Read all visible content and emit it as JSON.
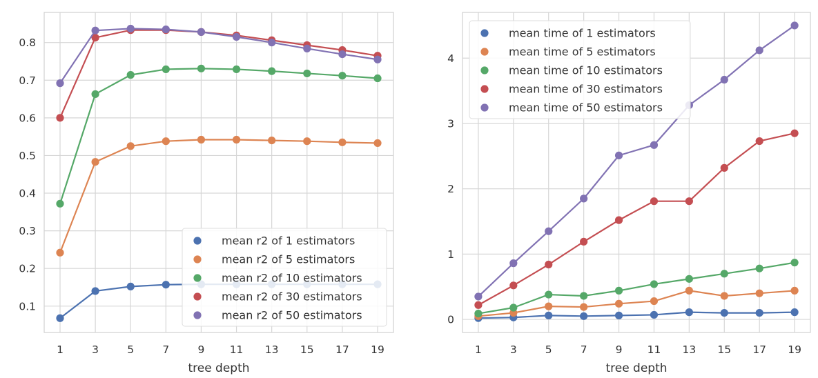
{
  "chart_data": [
    {
      "type": "line",
      "xlabel": "tree depth",
      "ylabel": "",
      "xticks": [
        1,
        3,
        5,
        7,
        9,
        11,
        13,
        15,
        17,
        19
      ],
      "xlim": [
        0.1,
        19.9
      ],
      "ylim": [
        0.03,
        0.88
      ],
      "yticks": [
        0.1,
        0.2,
        0.3,
        0.4,
        0.5,
        0.6,
        0.7,
        0.8
      ],
      "grid": true,
      "legend_position": "lower-right",
      "x": [
        1,
        3,
        5,
        7,
        9,
        11,
        13,
        15,
        17,
        19
      ],
      "series": [
        {
          "name": "mean r2 of 1 estimators",
          "color": "#4c72b0",
          "values": [
            0.068,
            0.14,
            0.152,
            0.157,
            0.158,
            0.158,
            0.158,
            0.158,
            0.158,
            0.158
          ]
        },
        {
          "name": "mean r2 of 5 estimators",
          "color": "#dd8452",
          "values": [
            0.242,
            0.483,
            0.525,
            0.538,
            0.542,
            0.542,
            0.54,
            0.538,
            0.535,
            0.533
          ]
        },
        {
          "name": "mean r2 of 10 estimators",
          "color": "#55a868",
          "values": [
            0.372,
            0.663,
            0.714,
            0.729,
            0.731,
            0.729,
            0.724,
            0.718,
            0.712,
            0.705
          ]
        },
        {
          "name": "mean r2 of 30 estimators",
          "color": "#c44e52",
          "values": [
            0.6,
            0.813,
            0.833,
            0.833,
            0.828,
            0.819,
            0.806,
            0.793,
            0.78,
            0.765
          ]
        },
        {
          "name": "mean r2 of 50 estimators",
          "color": "#8172b3",
          "values": [
            0.692,
            0.832,
            0.837,
            0.835,
            0.828,
            0.815,
            0.8,
            0.784,
            0.769,
            0.755
          ]
        }
      ]
    },
    {
      "type": "line",
      "xlabel": "tree depth",
      "ylabel": "",
      "xticks": [
        1,
        3,
        5,
        7,
        9,
        11,
        13,
        15,
        17,
        19
      ],
      "xlim": [
        0.1,
        19.9
      ],
      "ylim": [
        -0.2,
        4.7
      ],
      "yticks": [
        0,
        1,
        2,
        3,
        4
      ],
      "grid": true,
      "legend_position": "upper-left",
      "x": [
        1,
        3,
        5,
        7,
        9,
        11,
        13,
        15,
        17,
        19
      ],
      "series": [
        {
          "name": "mean time of 1 estimators",
          "color": "#4c72b0",
          "values": [
            0.02,
            0.03,
            0.06,
            0.05,
            0.06,
            0.07,
            0.11,
            0.1,
            0.1,
            0.11
          ]
        },
        {
          "name": "mean time of 5 estimators",
          "color": "#dd8452",
          "values": [
            0.05,
            0.1,
            0.2,
            0.19,
            0.24,
            0.28,
            0.44,
            0.36,
            0.4,
            0.44
          ]
        },
        {
          "name": "mean time of 10 estimators",
          "color": "#55a868",
          "values": [
            0.09,
            0.18,
            0.38,
            0.36,
            0.44,
            0.54,
            0.62,
            0.7,
            0.78,
            0.87
          ]
        },
        {
          "name": "mean time of 30 estimators",
          "color": "#c44e52",
          "values": [
            0.22,
            0.52,
            0.84,
            1.19,
            1.52,
            1.81,
            1.81,
            2.32,
            2.73,
            2.85
          ]
        },
        {
          "name": "mean time of 50 estimators",
          "color": "#8172b3",
          "values": [
            0.35,
            0.86,
            1.35,
            1.85,
            2.51,
            2.67,
            3.28,
            3.67,
            4.12,
            4.5
          ]
        }
      ]
    }
  ]
}
